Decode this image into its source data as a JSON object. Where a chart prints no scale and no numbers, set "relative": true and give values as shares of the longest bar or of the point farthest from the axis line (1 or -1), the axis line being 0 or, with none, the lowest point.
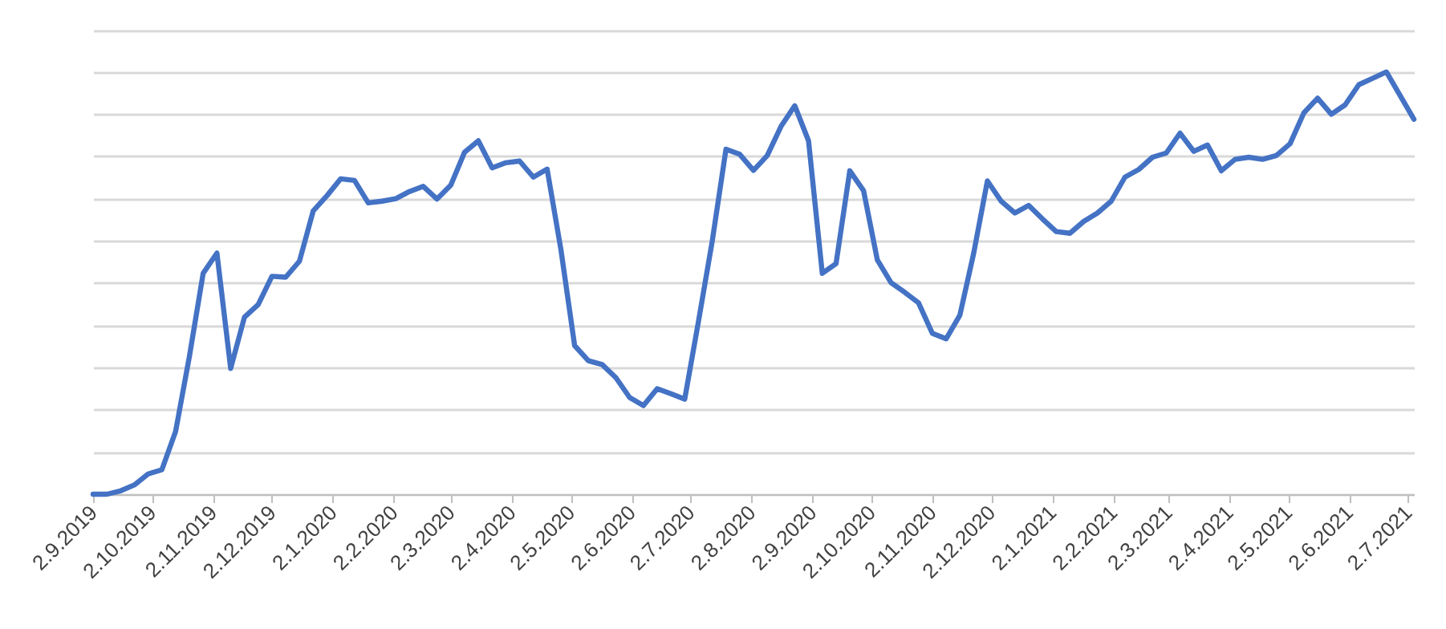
{
  "chart_data": {
    "type": "line",
    "relative": true,
    "grid": "y",
    "line_style": "solid",
    "x": [
      "2019-09-02",
      "2019-09-09",
      "2019-09-16",
      "2019-09-23",
      "2019-09-30",
      "2019-10-07",
      "2019-10-14",
      "2019-10-21",
      "2019-10-28",
      "2019-11-04",
      "2019-11-11",
      "2019-11-18",
      "2019-11-25",
      "2019-12-02",
      "2019-12-09",
      "2019-12-16",
      "2019-12-23",
      "2019-12-30",
      "2020-01-06",
      "2020-01-13",
      "2020-01-20",
      "2020-01-27",
      "2020-02-03",
      "2020-02-10",
      "2020-02-17",
      "2020-02-24",
      "2020-03-02",
      "2020-03-09",
      "2020-03-16",
      "2020-03-23",
      "2020-03-30",
      "2020-04-06",
      "2020-04-13",
      "2020-04-20",
      "2020-04-27",
      "2020-05-04",
      "2020-05-11",
      "2020-05-18",
      "2020-05-25",
      "2020-06-01",
      "2020-06-08",
      "2020-06-15",
      "2020-06-22",
      "2020-06-29",
      "2020-07-06",
      "2020-07-13",
      "2020-07-20",
      "2020-07-27",
      "2020-08-03",
      "2020-08-10",
      "2020-08-17",
      "2020-08-24",
      "2020-08-31",
      "2020-09-07",
      "2020-09-14",
      "2020-09-21",
      "2020-09-28",
      "2020-10-05",
      "2020-10-12",
      "2020-10-19",
      "2020-10-26",
      "2020-11-02",
      "2020-11-09",
      "2020-11-16",
      "2020-11-23",
      "2020-11-30",
      "2020-12-07",
      "2020-12-14",
      "2020-12-21",
      "2020-12-28",
      "2021-01-04",
      "2021-01-11",
      "2021-01-18",
      "2021-01-25",
      "2021-02-01",
      "2021-02-08",
      "2021-02-15",
      "2021-02-22",
      "2021-03-01",
      "2021-03-08",
      "2021-03-15",
      "2021-03-22",
      "2021-03-29",
      "2021-04-05",
      "2021-04-12",
      "2021-04-19",
      "2021-04-26",
      "2021-05-03",
      "2021-05-10",
      "2021-05-17",
      "2021-05-24",
      "2021-05-31",
      "2021-06-07",
      "2021-06-14",
      "2021-06-21",
      "2021-06-28",
      "2021-07-05"
    ],
    "series": [
      {
        "color": "#4472c4",
        "values": [
          0,
          0,
          0.008,
          0.022,
          0.048,
          0.058,
          0.149,
          0.326,
          0.523,
          0.571,
          0.298,
          0.419,
          0.449,
          0.516,
          0.514,
          0.552,
          0.671,
          0.707,
          0.747,
          0.743,
          0.69,
          0.694,
          0.7,
          0.717,
          0.729,
          0.699,
          0.732,
          0.81,
          0.837,
          0.773,
          0.785,
          0.789,
          0.751,
          0.77,
          0.58,
          0.352,
          0.316,
          0.307,
          0.276,
          0.229,
          0.21,
          0.25,
          0.238,
          0.225,
          0.409,
          0.599,
          0.817,
          0.805,
          0.767,
          0.802,
          0.871,
          0.92,
          0.837,
          0.523,
          0.546,
          0.766,
          0.719,
          0.555,
          0.501,
          0.478,
          0.453,
          0.381,
          0.368,
          0.424,
          0.57,
          0.742,
          0.694,
          0.666,
          0.684,
          0.652,
          0.622,
          0.618,
          0.646,
          0.666,
          0.694,
          0.751,
          0.769,
          0.798,
          0.808,
          0.855,
          0.812,
          0.827,
          0.766,
          0.793,
          0.798,
          0.793,
          0.802,
          0.83,
          0.903,
          0.938,
          0.9,
          0.922,
          0.97,
          0.985,
          1,
          0.944,
          0.888
        ]
      }
    ],
    "xlim": [
      "2019-09-02",
      "2021-07-05"
    ],
    "xticks": [
      {
        "value": "2019-09-02",
        "label": "2.9.2019"
      },
      {
        "value": "2019-10-02",
        "label": "2.10.2019"
      },
      {
        "value": "2019-11-02",
        "label": "2.11.2019"
      },
      {
        "value": "2019-12-02",
        "label": "2.12.2019"
      },
      {
        "value": "2020-01-02",
        "label": "2.1.2020"
      },
      {
        "value": "2020-02-02",
        "label": "2.2.2020"
      },
      {
        "value": "2020-03-02",
        "label": "2.3.2020"
      },
      {
        "value": "2020-04-02",
        "label": "2.4.2020"
      },
      {
        "value": "2020-05-02",
        "label": "2.5.2020"
      },
      {
        "value": "2020-06-02",
        "label": "2.6.2020"
      },
      {
        "value": "2020-07-02",
        "label": "2.7.2020"
      },
      {
        "value": "2020-08-02",
        "label": "2.8.2020"
      },
      {
        "value": "2020-09-02",
        "label": "2.9.2020"
      },
      {
        "value": "2020-10-02",
        "label": "2.10.2020"
      },
      {
        "value": "2020-11-02",
        "label": "2.11.2020"
      },
      {
        "value": "2020-12-02",
        "label": "2.12.2020"
      },
      {
        "value": "2021-01-02",
        "label": "2.1.2021"
      },
      {
        "value": "2021-02-02",
        "label": "2.2.2021"
      },
      {
        "value": "2021-03-02",
        "label": "2.3.2021"
      },
      {
        "value": "2021-04-02",
        "label": "2.4.2021"
      },
      {
        "value": "2021-05-02",
        "label": "2.5.2021"
      },
      {
        "value": "2021-06-02",
        "label": "2.6.2021"
      },
      {
        "value": "2021-07-02",
        "label": "2.7.2021"
      }
    ]
  }
}
